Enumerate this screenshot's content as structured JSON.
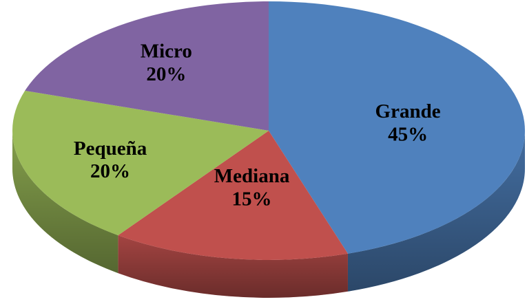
{
  "chart_data": {
    "type": "pie",
    "categories": [
      "Grande",
      "Mediana",
      "Pequeña",
      "Micro"
    ],
    "values": [
      45,
      15,
      20,
      20
    ],
    "value_labels": [
      "45%",
      "15%",
      "20%",
      "20%"
    ],
    "colors": [
      "#4f81bd",
      "#c0504d",
      "#9bbb59",
      "#8064a2"
    ]
  }
}
